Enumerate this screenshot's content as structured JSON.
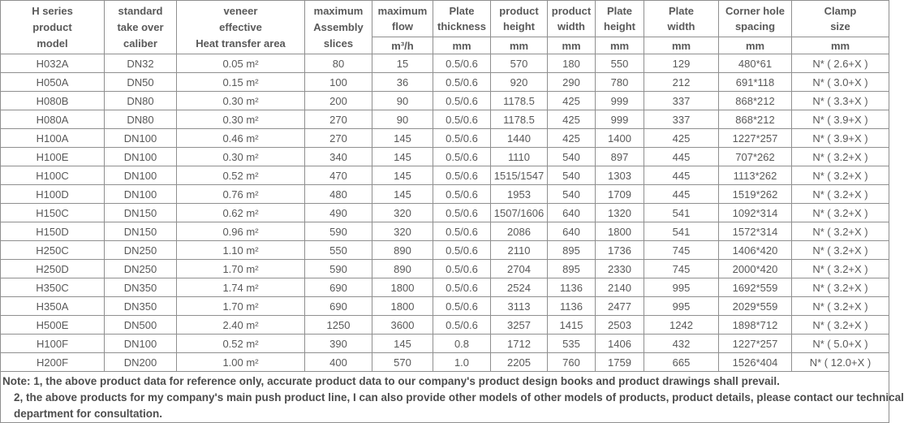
{
  "colors": {
    "border": "#8f8f8f",
    "text": "#595959",
    "note_text": "#4d4d4d",
    "background": "#ffffff"
  },
  "table": {
    "header": {
      "cols": [
        {
          "lines": [
            "H series",
            "product",
            "model"
          ]
        },
        {
          "lines": [
            "standard",
            "take over",
            "caliber"
          ]
        },
        {
          "lines": [
            "veneer",
            "effective",
            "Heat transfer area"
          ]
        },
        {
          "lines": [
            "maximum",
            "Assembly",
            "slices"
          ]
        },
        {
          "lines": [
            "maximum",
            "flow"
          ],
          "unit": "m³/h"
        },
        {
          "lines": [
            "Plate",
            "thickness"
          ],
          "unit": "mm"
        },
        {
          "lines": [
            "product",
            "height"
          ],
          "unit": "mm"
        },
        {
          "lines": [
            "product",
            "width"
          ],
          "unit": "mm"
        },
        {
          "lines": [
            "Plate",
            "height"
          ],
          "unit": "mm"
        },
        {
          "lines": [
            "Plate",
            "width"
          ],
          "unit": "mm"
        },
        {
          "lines": [
            "Corner hole",
            "spacing"
          ],
          "unit": "mm"
        },
        {
          "lines": [
            "Clamp",
            "size"
          ],
          "unit": "mm"
        }
      ]
    },
    "rows": [
      [
        "H032A",
        "DN32",
        "0.05 m²",
        "80",
        "15",
        "0.5/0.6",
        "570",
        "180",
        "550",
        "129",
        "480*61",
        "N* ( 2.6+X )"
      ],
      [
        "H050A",
        "DN50",
        "0.15 m²",
        "100",
        "36",
        "0.5/0.6",
        "920",
        "290",
        "780",
        "212",
        "691*118",
        "N* ( 3.0+X )"
      ],
      [
        "H080B",
        "DN80",
        "0.30 m²",
        "200",
        "90",
        "0.5/0.6",
        "1178.5",
        "425",
        "999",
        "337",
        "868*212",
        "N* ( 3.3+X )"
      ],
      [
        "H080A",
        "DN80",
        "0.30 m²",
        "270",
        "90",
        "0.5/0.6",
        "1178.5",
        "425",
        "999",
        "337",
        "868*212",
        "N* ( 3.9+X )"
      ],
      [
        "H100A",
        "DN100",
        "0.46 m²",
        "270",
        "145",
        "0.5/0.6",
        "1440",
        "425",
        "1400",
        "425",
        "1227*257",
        "N* ( 3.9+X )"
      ],
      [
        "H100E",
        "DN100",
        "0.30 m²",
        "340",
        "145",
        "0.5/0.6",
        "1110",
        "540",
        "897",
        "445",
        "707*262",
        "N* ( 3.2+X )"
      ],
      [
        "H100C",
        "DN100",
        "0.52 m²",
        "470",
        "145",
        "0.5/0.6",
        "1515/1547",
        "540",
        "1303",
        "445",
        "1113*262",
        "N* ( 3.2+X )"
      ],
      [
        "H100D",
        "DN100",
        "0.76 m²",
        "480",
        "145",
        "0.5/0.6",
        "1953",
        "540",
        "1709",
        "445",
        "1519*262",
        "N* ( 3.2+X )"
      ],
      [
        "H150C",
        "DN150",
        "0.62 m²",
        "490",
        "320",
        "0.5/0.6",
        "1507/1606",
        "640",
        "1320",
        "541",
        "1092*314",
        "N* ( 3.2+X )"
      ],
      [
        "H150D",
        "DN150",
        "0.96 m²",
        "590",
        "320",
        "0.5/0.6",
        "2086",
        "640",
        "1800",
        "541",
        "1572*314",
        "N* ( 3.2+X )"
      ],
      [
        "H250C",
        "DN250",
        "1.10 m²",
        "550",
        "890",
        "0.5/0.6",
        "2110",
        "895",
        "1736",
        "745",
        "1406*420",
        "N* ( 3.2+X )"
      ],
      [
        "H250D",
        "DN250",
        "1.70 m²",
        "590",
        "890",
        "0.5/0.6",
        "2704",
        "895",
        "2330",
        "745",
        "2000*420",
        "N* ( 3.2+X )"
      ],
      [
        "H350C",
        "DN350",
        "1.74 m²",
        "690",
        "1800",
        "0.5/0.6",
        "2524",
        "1136",
        "2140",
        "995",
        "1692*559",
        "N* ( 3.2+X )"
      ],
      [
        "H350A",
        "DN350",
        "1.70 m²",
        "690",
        "1800",
        "0.5/0.6",
        "3113",
        "1136",
        "2477",
        "995",
        "2029*559",
        "N* ( 3.2+X )"
      ],
      [
        "H500E",
        "DN500",
        "2.40 m²",
        "1250",
        "3600",
        "0.5/0.6",
        "3257",
        "1415",
        "2503",
        "1242",
        "1898*712",
        "N* ( 3.2+X )"
      ],
      [
        "H100F",
        "DN100",
        "0.52 m²",
        "390",
        "145",
        "0.8",
        "1712",
        "535",
        "1406",
        "432",
        "1227*257",
        "N* ( 5.0+X )"
      ],
      [
        "H200F",
        "DN200",
        "1.00 m²",
        "400",
        "570",
        "1.0",
        "2205",
        "760",
        "1759",
        "665",
        "1526*404",
        "N* ( 12.0+X )"
      ]
    ]
  },
  "note": {
    "lines": [
      "Note: 1, the above product data for reference only, accurate product data to our company's product design books and product drawings shall prevail.",
      "2, the above products for my company's main push product line, I can also provide other models of other models of products, product details, please contact our technical",
      "department for consultation."
    ]
  }
}
